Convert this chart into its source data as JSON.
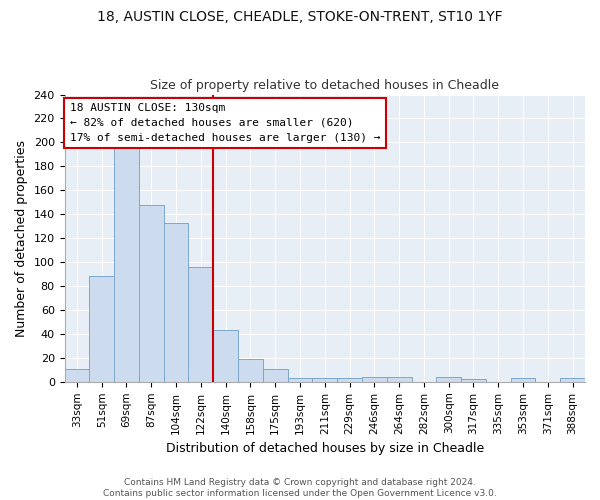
{
  "title1": "18, AUSTIN CLOSE, CHEADLE, STOKE-ON-TRENT, ST10 1YF",
  "title2": "Size of property relative to detached houses in Cheadle",
  "xlabel": "Distribution of detached houses by size in Cheadle",
  "ylabel": "Number of detached properties",
  "categories": [
    "33sqm",
    "51sqm",
    "69sqm",
    "87sqm",
    "104sqm",
    "122sqm",
    "140sqm",
    "158sqm",
    "175sqm",
    "193sqm",
    "211sqm",
    "229sqm",
    "246sqm",
    "264sqm",
    "282sqm",
    "300sqm",
    "317sqm",
    "335sqm",
    "353sqm",
    "371sqm",
    "388sqm"
  ],
  "values": [
    11,
    88,
    196,
    148,
    133,
    96,
    43,
    19,
    11,
    3,
    3,
    3,
    4,
    4,
    0,
    4,
    2,
    0,
    3,
    0,
    3
  ],
  "bar_color": "#ccdcee",
  "bar_edgecolor": "#7aa8cc",
  "vline_x_pos": 5.5,
  "vline_color": "#cc0000",
  "annotation_title": "18 AUSTIN CLOSE: 130sqm",
  "annotation_line1": "← 82% of detached houses are smaller (620)",
  "annotation_line2": "17% of semi-detached houses are larger (130) →",
  "annotation_box_color": "white",
  "annotation_box_edgecolor": "#cc0000",
  "ylim": [
    0,
    240
  ],
  "yticks": [
    0,
    20,
    40,
    60,
    80,
    100,
    120,
    140,
    160,
    180,
    200,
    220,
    240
  ],
  "footer1": "Contains HM Land Registry data © Crown copyright and database right 2024.",
  "footer2": "Contains public sector information licensed under the Open Government Licence v3.0.",
  "bg_color": "#e8eef6",
  "fig_bg_color": "#ffffff",
  "grid_color": "#ffffff",
  "title1_fontsize": 10,
  "title2_fontsize": 9,
  "ylabel_fontsize": 9,
  "xlabel_fontsize": 9,
  "tick_fontsize": 8,
  "xtick_fontsize": 7.5,
  "footer_fontsize": 6.5,
  "ann_fontsize": 8
}
